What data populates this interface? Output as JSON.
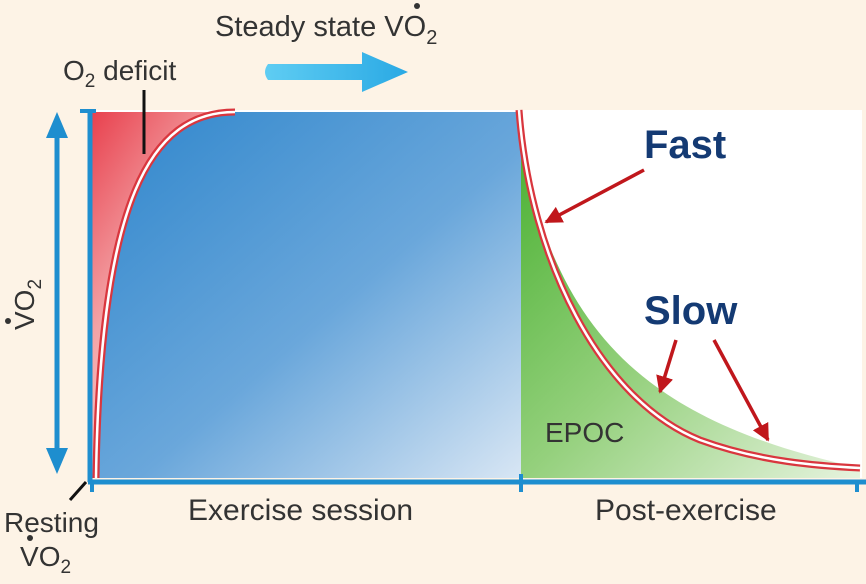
{
  "labels": {
    "steady_state_prefix": "Steady state ",
    "steady_state_v": "V",
    "steady_state_o": "O",
    "steady_state_sub": "2",
    "o2_deficit_o": "O",
    "o2_deficit_sub": "2",
    "o2_deficit_word": " deficit",
    "y_axis_v": "V",
    "y_axis_o": "O",
    "y_axis_sub": "2",
    "fast": "Fast",
    "slow": "Slow",
    "epoc": "EPOC",
    "exercise_session": "Exercise session",
    "post_exercise": "Post-exercise",
    "resting_line1": "Resting",
    "resting_v": "V",
    "resting_o": "O",
    "resting_sub": "2"
  },
  "colors": {
    "background": "#fdf3e6",
    "axis_blue": "#1e8ecf",
    "arrow_blue": "#4fc3ef",
    "deficit_red": "#e8414e",
    "curve_red": "#d9363e",
    "exercise_blue": "#3d8fd0",
    "epoc_green": "#5cbf3c",
    "label_navy": "#143a73",
    "pointer_red": "#c0171c",
    "text_gray": "#333333"
  }
}
